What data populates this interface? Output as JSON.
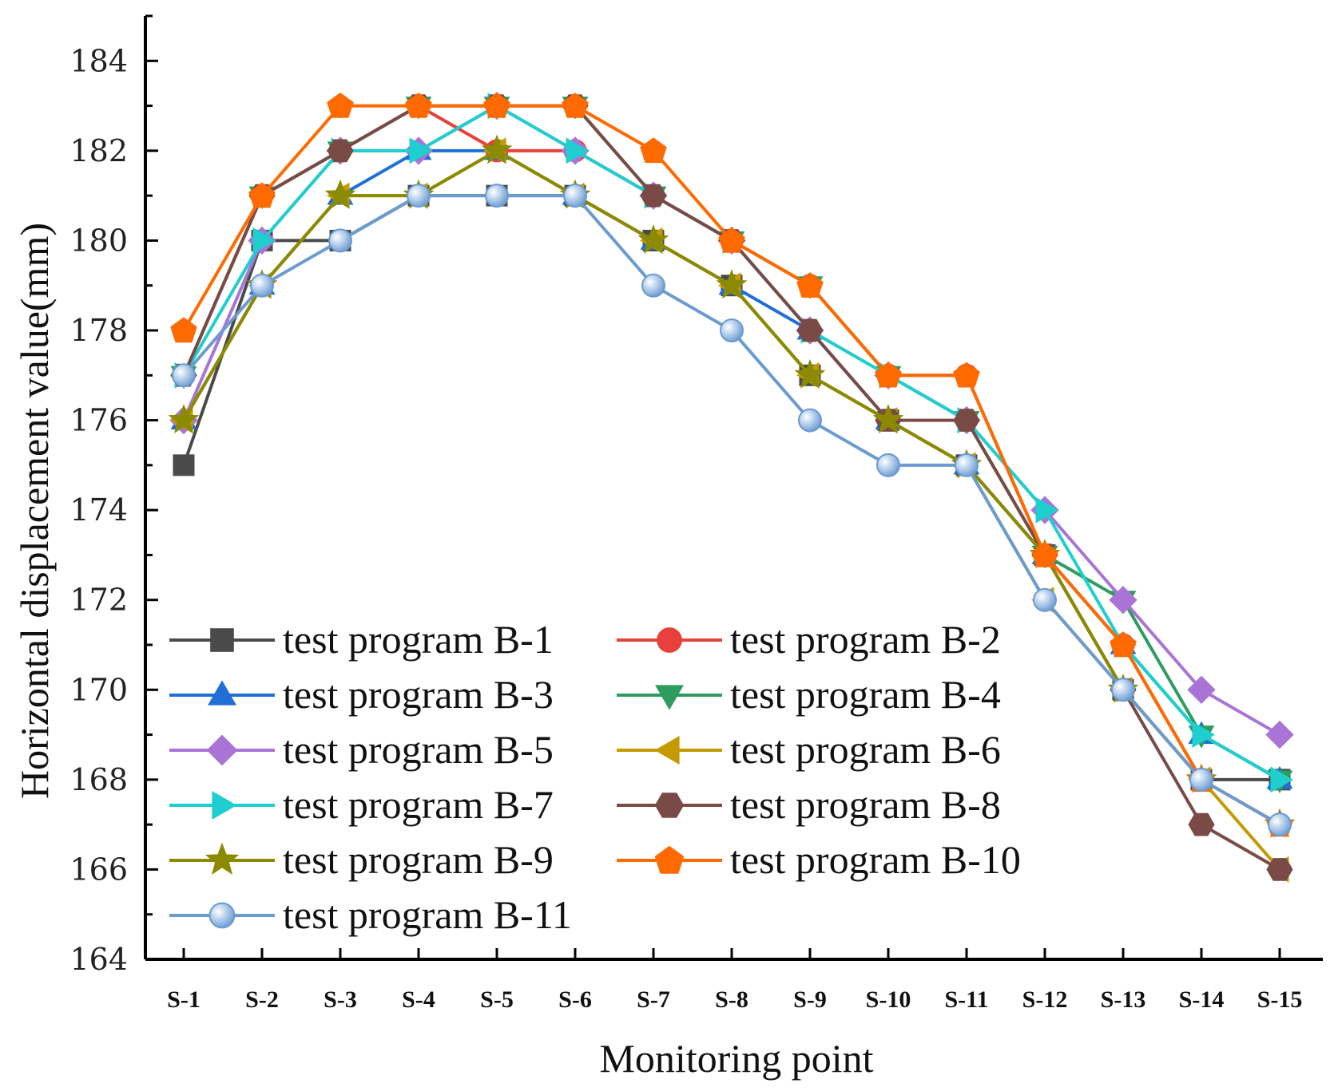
{
  "chart_data": {
    "type": "line",
    "title": "",
    "xlabel": "Monitoring point",
    "ylabel": "Horizontal displacement value(mm)",
    "ylim": [
      164,
      185
    ],
    "yticks": [
      164,
      166,
      168,
      170,
      172,
      174,
      176,
      178,
      180,
      182,
      184
    ],
    "categories": [
      "S-1",
      "S-2",
      "S-3",
      "S-4",
      "S-5",
      "S-6",
      "S-7",
      "S-8",
      "S-9",
      "S-10",
      "S-11",
      "S-12",
      "S-13",
      "S-14",
      "S-15"
    ],
    "legend_position": "lower-left",
    "series": [
      {
        "name": "test program B-1",
        "color": "#4a4a4a",
        "marker": "square",
        "values": [
          175,
          180,
          180,
          181,
          181,
          181,
          180,
          179,
          177,
          176,
          175,
          173,
          170,
          168,
          168
        ]
      },
      {
        "name": "test program B-2",
        "color": "#e8403a",
        "marker": "circle",
        "values": [
          177,
          181,
          182,
          183,
          182,
          182,
          181,
          180,
          179,
          177,
          177,
          173,
          171,
          168,
          167
        ]
      },
      {
        "name": "test program B-3",
        "color": "#1f6fd6",
        "marker": "triangle-up",
        "values": [
          176,
          179,
          181,
          182,
          182,
          181,
          180,
          179,
          178,
          176,
          175,
          173,
          171,
          169,
          168
        ]
      },
      {
        "name": "test program B-4",
        "color": "#2e9c5f",
        "marker": "triangle-down",
        "values": [
          177,
          181,
          182,
          183,
          183,
          183,
          181,
          180,
          179,
          177,
          176,
          173,
          172,
          169,
          168
        ]
      },
      {
        "name": "test program B-5",
        "color": "#a974d6",
        "marker": "diamond",
        "values": [
          176,
          180,
          182,
          182,
          183,
          182,
          181,
          180,
          178,
          177,
          176,
          174,
          172,
          170,
          169
        ]
      },
      {
        "name": "test program B-6",
        "color": "#c49a00",
        "marker": "triangle-left",
        "values": [
          176,
          179,
          181,
          181,
          182,
          181,
          180,
          179,
          177,
          176,
          175,
          172,
          170,
          168,
          166
        ]
      },
      {
        "name": "test program B-7",
        "color": "#1fcfcf",
        "marker": "triangle-right",
        "values": [
          177,
          180,
          182,
          182,
          183,
          182,
          181,
          180,
          178,
          177,
          176,
          174,
          171,
          169,
          168
        ]
      },
      {
        "name": "test program B-8",
        "color": "#7a4a46",
        "marker": "hexagon",
        "values": [
          177,
          181,
          182,
          183,
          183,
          183,
          181,
          180,
          178,
          176,
          176,
          173,
          170,
          167,
          166
        ]
      },
      {
        "name": "test program B-9",
        "color": "#8b8a00",
        "marker": "star",
        "values": [
          176,
          179,
          181,
          181,
          182,
          181,
          180,
          179,
          177,
          176,
          175,
          173,
          170,
          168,
          167
        ]
      },
      {
        "name": "test program B-10",
        "color": "#ff6a00",
        "marker": "pentagon",
        "values": [
          178,
          181,
          183,
          183,
          183,
          183,
          182,
          180,
          179,
          177,
          177,
          173,
          171,
          168,
          167
        ]
      },
      {
        "name": "test program B-11",
        "color": "#6b9bd1",
        "marker": "sphere",
        "values": [
          177,
          179,
          180,
          181,
          181,
          181,
          179,
          178,
          176,
          175,
          175,
          172,
          170,
          168,
          167
        ]
      }
    ]
  }
}
